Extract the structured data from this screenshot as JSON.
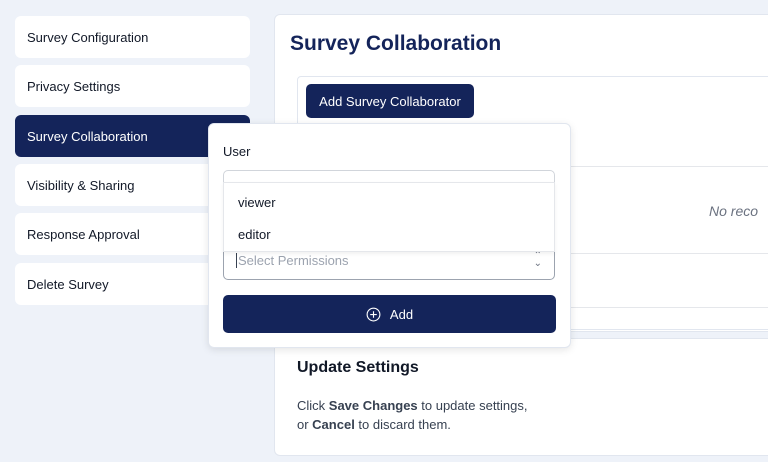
{
  "sidebar": {
    "items": [
      {
        "label": "Survey Configuration",
        "active": false
      },
      {
        "label": "Privacy Settings",
        "active": false
      },
      {
        "label": "Survey Collaboration",
        "active": true
      },
      {
        "label": "Visibility & Sharing",
        "active": false
      },
      {
        "label": "Response Approval",
        "active": false
      },
      {
        "label": "Delete Survey",
        "active": false
      }
    ]
  },
  "main": {
    "title": "Survey Collaboration",
    "add_collaborator_label": "Add Survey Collaborator",
    "empty_text": "No reco"
  },
  "popover": {
    "user_label": "User",
    "user_value": "",
    "permissions_placeholder": "Select Permissions",
    "options": [
      "viewer",
      "editor"
    ],
    "add_label": "Add",
    "add_icon": "plus-circle-icon"
  },
  "update": {
    "title": "Update Settings",
    "line1_prefix": "Click ",
    "save_label": "Save Changes",
    "line1_suffix": " to update settings,",
    "line2_prefix": "or ",
    "cancel_label": "Cancel",
    "line2_suffix": " to discard them."
  },
  "colors": {
    "primary": "#14245a",
    "background": "#eef2f9"
  }
}
